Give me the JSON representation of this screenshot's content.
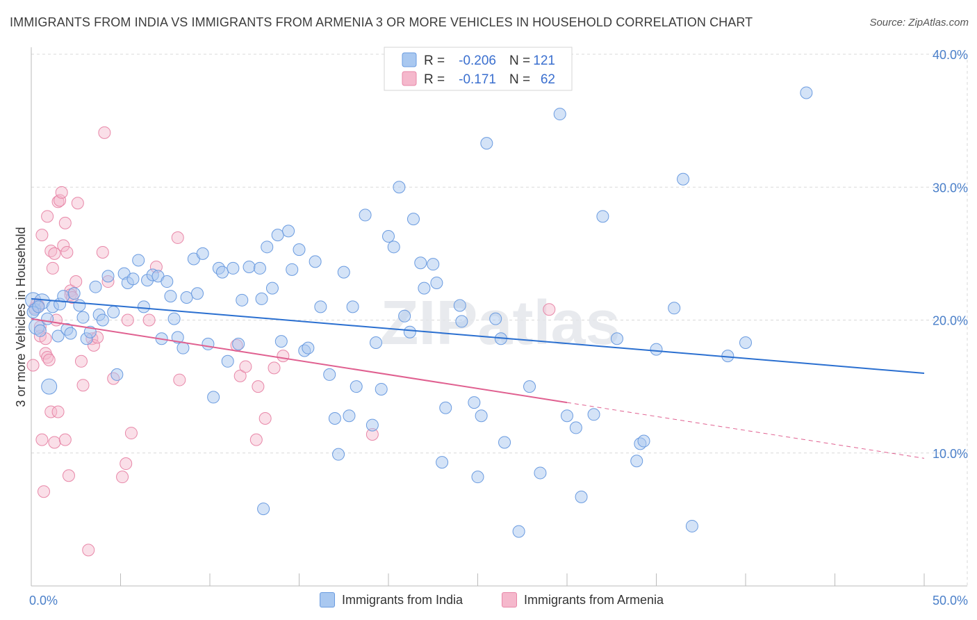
{
  "title": "IMMIGRANTS FROM INDIA VS IMMIGRANTS FROM ARMENIA 3 OR MORE VEHICLES IN HOUSEHOLD CORRELATION CHART",
  "source": "Source: ZipAtlas.com",
  "watermark": "ZIPatlas",
  "colors": {
    "india_fill": "#a9c8f0",
    "india_stroke": "#6a9be0",
    "india_line": "#2a6fd0",
    "armenia_fill": "#f5b8cc",
    "armenia_stroke": "#e887a8",
    "armenia_line": "#e06090",
    "grid": "#d9d9d9",
    "tick_label": "#4a7fc9"
  },
  "legend": {
    "rows": [
      {
        "r_label": "R =",
        "r_value": "-0.206",
        "n_label": "N =",
        "n_value": "121"
      },
      {
        "r_label": "R =",
        "r_value": "-0.171",
        "n_label": "N =",
        "n_value": "62"
      }
    ]
  },
  "bottom_legend": {
    "india": "Immigrants from India",
    "armenia": "Immigrants from Armenia"
  },
  "chart_data": {
    "type": "scatter",
    "title": "IMMIGRANTS FROM INDIA VS IMMIGRANTS FROM ARMENIA 3 OR MORE VEHICLES IN HOUSEHOLD CORRELATION CHART",
    "xlabel": "",
    "ylabel": "3 or more Vehicles in Household",
    "xlim": [
      0,
      50
    ],
    "ylim": [
      0,
      40
    ],
    "x_tick_labels": [
      "0.0%",
      "50.0%"
    ],
    "y_ticks": [
      10,
      20,
      30,
      40
    ],
    "y_tick_labels": [
      "10.0%",
      "20.0%",
      "30.0%",
      "40.0%"
    ],
    "grid": true,
    "legend_position": "top-center",
    "series": [
      {
        "name": "Immigrants from India",
        "r": -0.206,
        "n": 121,
        "trend": {
          "x0": 0,
          "y0": 21.6,
          "x1": 50,
          "y1": 16.0
        },
        "points": [
          [
            0.1,
            21.5
          ],
          [
            0.2,
            20.8
          ],
          [
            0.3,
            19.5
          ],
          [
            0.5,
            19.2
          ],
          [
            0.6,
            21.4
          ],
          [
            0.9,
            20.1
          ],
          [
            1.0,
            15.0
          ],
          [
            1.2,
            21.0
          ],
          [
            1.5,
            18.8
          ],
          [
            1.6,
            21.2
          ],
          [
            1.8,
            21.8
          ],
          [
            2.0,
            19.3
          ],
          [
            2.2,
            19.0
          ],
          [
            2.4,
            22.0
          ],
          [
            2.7,
            21.1
          ],
          [
            2.9,
            20.2
          ],
          [
            3.1,
            18.6
          ],
          [
            3.3,
            19.1
          ],
          [
            3.6,
            22.5
          ],
          [
            3.8,
            20.4
          ],
          [
            4.0,
            20.0
          ],
          [
            4.3,
            23.3
          ],
          [
            4.6,
            20.6
          ],
          [
            5.2,
            23.5
          ],
          [
            5.4,
            22.8
          ],
          [
            5.7,
            23.1
          ],
          [
            6.0,
            24.5
          ],
          [
            6.3,
            21.0
          ],
          [
            6.5,
            23.0
          ],
          [
            6.8,
            23.4
          ],
          [
            7.1,
            23.3
          ],
          [
            7.3,
            18.6
          ],
          [
            7.6,
            22.9
          ],
          [
            7.8,
            21.8
          ],
          [
            8.0,
            20.1
          ],
          [
            8.2,
            18.7
          ],
          [
            8.5,
            17.9
          ],
          [
            8.7,
            21.7
          ],
          [
            9.1,
            24.6
          ],
          [
            9.3,
            22.0
          ],
          [
            9.6,
            25.0
          ],
          [
            9.9,
            18.2
          ],
          [
            10.2,
            14.2
          ],
          [
            10.5,
            23.9
          ],
          [
            10.7,
            23.6
          ],
          [
            11.0,
            16.9
          ],
          [
            11.3,
            23.9
          ],
          [
            11.6,
            18.2
          ],
          [
            11.8,
            21.5
          ],
          [
            12.2,
            24.0
          ],
          [
            12.8,
            23.9
          ],
          [
            12.9,
            21.6
          ],
          [
            13.2,
            25.5
          ],
          [
            13.5,
            22.4
          ],
          [
            13.8,
            26.4
          ],
          [
            14.0,
            18.4
          ],
          [
            14.4,
            26.7
          ],
          [
            14.6,
            23.8
          ],
          [
            15.0,
            25.3
          ],
          [
            15.3,
            17.7
          ],
          [
            15.5,
            17.9
          ],
          [
            15.9,
            24.4
          ],
          [
            16.2,
            21.0
          ],
          [
            16.7,
            15.9
          ],
          [
            17.0,
            12.6
          ],
          [
            17.2,
            9.9
          ],
          [
            17.5,
            23.6
          ],
          [
            17.8,
            12.8
          ],
          [
            18.0,
            21.0
          ],
          [
            18.2,
            15.0
          ],
          [
            18.7,
            27.9
          ],
          [
            19.1,
            12.1
          ],
          [
            19.3,
            18.3
          ],
          [
            19.6,
            14.8
          ],
          [
            20.0,
            26.3
          ],
          [
            20.3,
            25.5
          ],
          [
            20.6,
            30.0
          ],
          [
            20.9,
            20.3
          ],
          [
            21.2,
            19.1
          ],
          [
            21.4,
            27.6
          ],
          [
            21.8,
            24.3
          ],
          [
            22.0,
            22.4
          ],
          [
            22.5,
            24.2
          ],
          [
            22.7,
            22.8
          ],
          [
            23.0,
            9.3
          ],
          [
            23.2,
            13.4
          ],
          [
            24.0,
            21.1
          ],
          [
            24.1,
            19.9
          ],
          [
            24.8,
            13.8
          ],
          [
            25.0,
            8.2
          ],
          [
            25.2,
            12.8
          ],
          [
            25.5,
            33.3
          ],
          [
            26.0,
            20.1
          ],
          [
            26.3,
            18.6
          ],
          [
            26.5,
            10.8
          ],
          [
            27.3,
            4.1
          ],
          [
            27.9,
            15.0
          ],
          [
            28.5,
            8.5
          ],
          [
            29.6,
            35.5
          ],
          [
            30.0,
            12.8
          ],
          [
            30.5,
            11.9
          ],
          [
            30.8,
            6.7
          ],
          [
            31.5,
            12.9
          ],
          [
            32.0,
            27.8
          ],
          [
            32.8,
            18.6
          ],
          [
            33.9,
            9.4
          ],
          [
            34.1,
            10.7
          ],
          [
            34.3,
            10.9
          ],
          [
            35.0,
            17.8
          ],
          [
            36.0,
            20.9
          ],
          [
            36.5,
            30.6
          ],
          [
            37.0,
            4.5
          ],
          [
            39.0,
            17.3
          ],
          [
            40.0,
            18.3
          ],
          [
            43.4,
            37.1
          ],
          [
            0.1,
            20.6
          ],
          [
            4.8,
            15.9
          ],
          [
            0.4,
            21.0
          ],
          [
            13.0,
            5.8
          ]
        ]
      },
      {
        "name": "Immigrants from Armenia",
        "r": -0.171,
        "n": 62,
        "trend": {
          "x0": 0,
          "y0": 20.1,
          "x1": 30,
          "y1": 13.8
        },
        "trend_dashed": {
          "x0": 30,
          "y0": 13.8,
          "x1": 50,
          "y1": 9.6
        },
        "points": [
          [
            0.1,
            16.6
          ],
          [
            0.2,
            20.9
          ],
          [
            0.3,
            21.2
          ],
          [
            0.4,
            21.1
          ],
          [
            0.5,
            18.8
          ],
          [
            0.5,
            19.5
          ],
          [
            0.6,
            26.4
          ],
          [
            0.6,
            11.0
          ],
          [
            0.7,
            7.1
          ],
          [
            0.8,
            18.6
          ],
          [
            0.8,
            17.5
          ],
          [
            0.9,
            27.8
          ],
          [
            0.9,
            17.2
          ],
          [
            1.0,
            17.0
          ],
          [
            1.1,
            13.1
          ],
          [
            1.1,
            25.2
          ],
          [
            1.2,
            23.9
          ],
          [
            1.3,
            10.8
          ],
          [
            1.3,
            25.0
          ],
          [
            1.4,
            20.0
          ],
          [
            1.5,
            13.1
          ],
          [
            1.5,
            28.9
          ],
          [
            1.6,
            29.0
          ],
          [
            1.7,
            29.6
          ],
          [
            1.8,
            25.6
          ],
          [
            1.9,
            27.3
          ],
          [
            1.9,
            11.0
          ],
          [
            2.0,
            25.1
          ],
          [
            2.1,
            8.3
          ],
          [
            2.2,
            22.2
          ],
          [
            2.2,
            21.9
          ],
          [
            2.3,
            21.7
          ],
          [
            2.5,
            22.9
          ],
          [
            2.6,
            28.8
          ],
          [
            2.8,
            16.9
          ],
          [
            2.9,
            15.1
          ],
          [
            3.2,
            2.7
          ],
          [
            3.4,
            18.6
          ],
          [
            3.5,
            18.1
          ],
          [
            3.7,
            18.7
          ],
          [
            4.0,
            25.1
          ],
          [
            4.1,
            34.1
          ],
          [
            4.3,
            22.9
          ],
          [
            4.6,
            15.6
          ],
          [
            5.1,
            8.2
          ],
          [
            5.3,
            9.2
          ],
          [
            5.6,
            11.5
          ],
          [
            6.6,
            20.0
          ],
          [
            7.0,
            24.0
          ],
          [
            8.2,
            26.2
          ],
          [
            8.3,
            15.5
          ],
          [
            11.5,
            18.1
          ],
          [
            11.7,
            15.8
          ],
          [
            12.0,
            16.5
          ],
          [
            12.6,
            11.0
          ],
          [
            12.7,
            15.0
          ],
          [
            13.1,
            12.6
          ],
          [
            13.6,
            16.4
          ],
          [
            14.1,
            17.3
          ],
          [
            19.1,
            11.4
          ],
          [
            29.0,
            20.8
          ],
          [
            5.4,
            20.0
          ]
        ]
      }
    ]
  }
}
